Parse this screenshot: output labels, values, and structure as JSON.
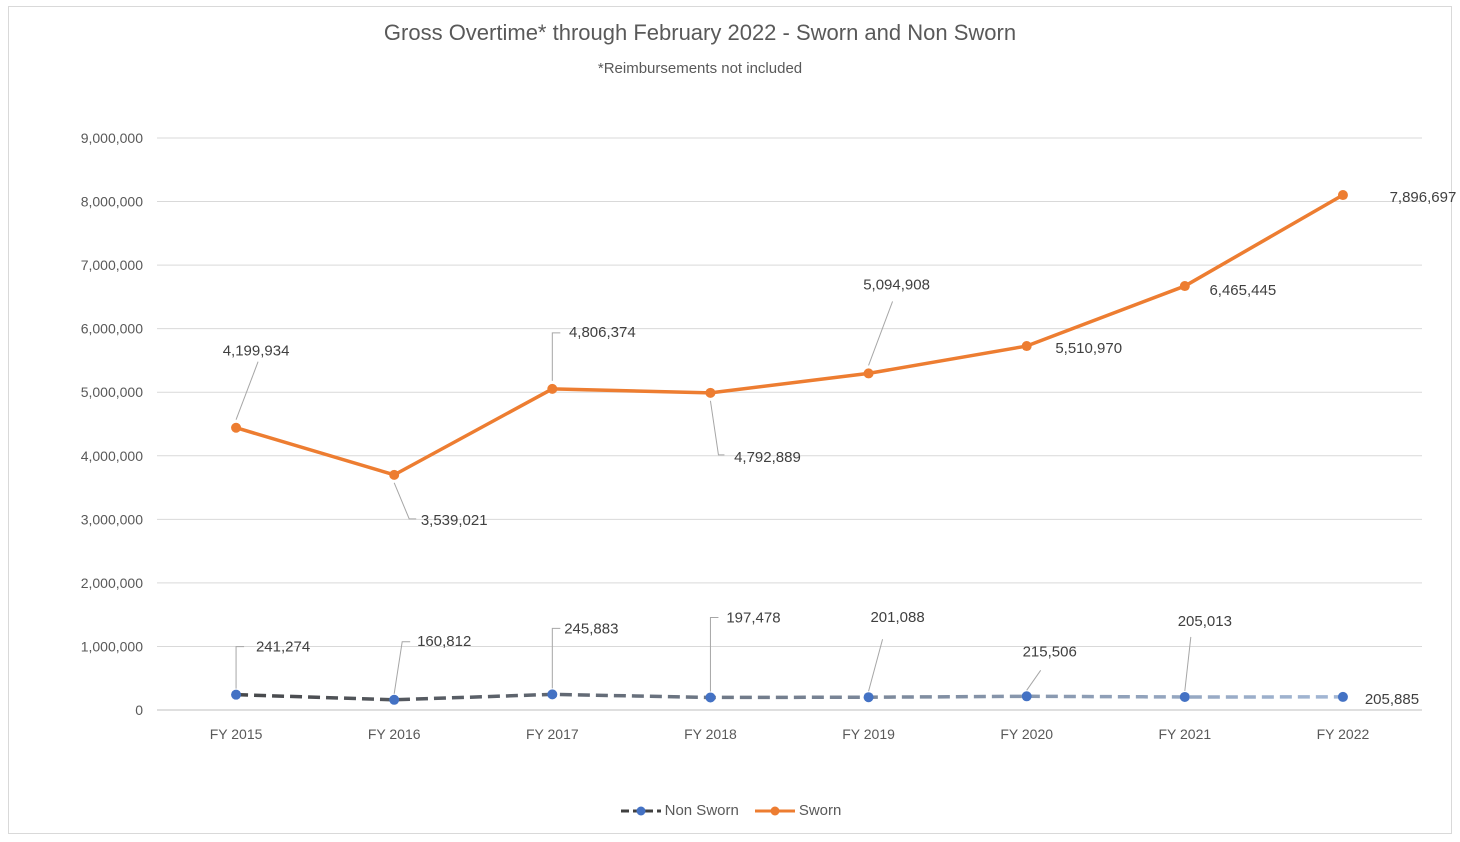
{
  "chart_data": {
    "type": "line",
    "title": "Gross Overtime* through February 2022 - Sworn and Non Sworn",
    "subtitle": "*Reimbursements not included",
    "categories": [
      "FY 2015",
      "FY 2016",
      "FY 2017",
      "FY 2018",
      "FY 2019",
      "FY 2020",
      "FY 2021",
      "FY 2022"
    ],
    "ylim": [
      0,
      9000000
    ],
    "yticks": [
      "0",
      "1,000,000",
      "2,000,000",
      "3,000,000",
      "4,000,000",
      "5,000,000",
      "6,000,000",
      "7,000,000",
      "8,000,000",
      "9,000,000"
    ],
    "grid": true,
    "legend_position": "bottom",
    "series": [
      {
        "name": "Non Sworn",
        "color": "#4472c4",
        "line_color": "#404040",
        "values": [
          241274,
          160812,
          245883,
          197478,
          201088,
          215506,
          205013,
          205885
        ],
        "labels": [
          "241,274",
          "160,812",
          "245,883",
          "197,478",
          "201,088",
          "215,506",
          "205,013",
          "205,885"
        ]
      },
      {
        "name": "Sworn",
        "color": "#ed7d31",
        "values": [
          4441208,
          3699833,
          5052257,
          4990367,
          5295996,
          5726476,
          6670458,
          8102582
        ],
        "labels": [
          "4,199,934",
          "3,539,021",
          "4,806,374",
          "4,792,889",
          "5,094,908",
          "5,510,970",
          "6,465,445",
          "7,896,697"
        ]
      }
    ]
  }
}
